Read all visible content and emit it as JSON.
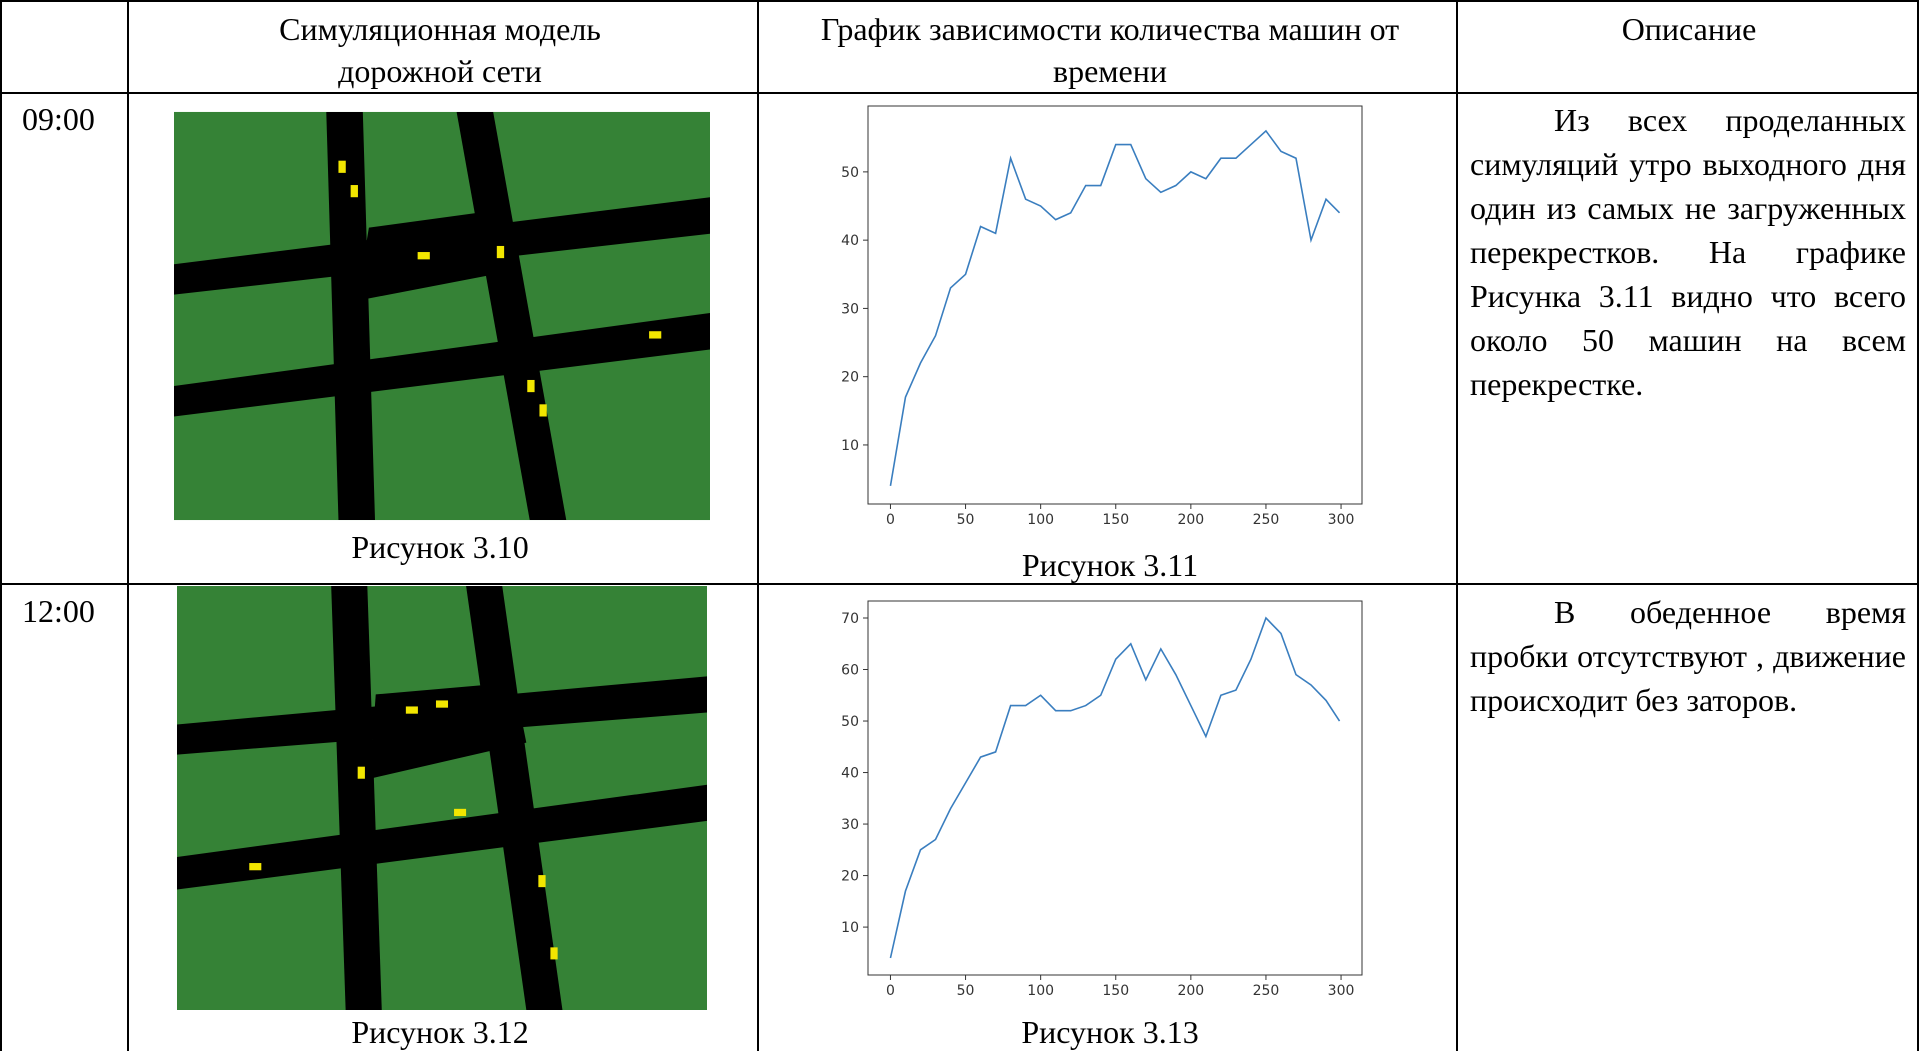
{
  "table": {
    "header": [
      "Симуляционная модель дорожной сети",
      "График зависимости количества машин от времени",
      "Описание"
    ],
    "rows": [
      {
        "time": "09:00",
        "sim_caption": "Рисунок 3.10",
        "chart_caption": "Рисунок 3.11",
        "description": "Из всех проделанных симуляций утро выходного дня один из самых не загруженных перекрестков. На графике Рисунка 3.11 видно что всего около 50 машин на всем перекрестке.",
        "chart": {
          "type": "line",
          "color": "#3a7ebf",
          "x": [
            0,
            10,
            20,
            30,
            40,
            50,
            60,
            70,
            80,
            90,
            100,
            110,
            120,
            130,
            140,
            150,
            160,
            170,
            180,
            190,
            200,
            210,
            220,
            230,
            240,
            250,
            260,
            270,
            280,
            290,
            299
          ],
          "values": [
            4,
            17,
            22,
            26,
            33,
            35,
            42,
            41,
            52,
            46,
            45,
            43,
            44,
            48,
            48,
            54,
            54,
            49,
            47,
            48,
            50,
            49,
            52,
            52,
            54,
            56,
            53,
            52,
            40,
            46,
            44
          ],
          "xlim": [
            -14.95,
            313.95
          ],
          "ylim": [
            1.35,
            59.65
          ],
          "xticks": [
            0,
            50,
            100,
            150,
            200,
            250,
            300
          ],
          "yticks": [
            10,
            20,
            30,
            40,
            50
          ]
        }
      },
      {
        "time": "12:00",
        "sim_caption": "Рисунок 3.12",
        "chart_caption": "Рисунок 3.13",
        "description": "В обеденное время пробки отсутствуют , движение происходит без заторов.",
        "chart": {
          "type": "line",
          "color": "#3a7ebf",
          "x": [
            0,
            10,
            20,
            30,
            40,
            50,
            60,
            70,
            80,
            90,
            100,
            110,
            120,
            130,
            140,
            150,
            160,
            170,
            180,
            190,
            200,
            210,
            220,
            230,
            240,
            250,
            260,
            270,
            280,
            290,
            299
          ],
          "values": [
            4,
            17,
            25,
            27,
            33,
            38,
            43,
            44,
            53,
            53,
            55,
            52,
            52,
            53,
            55,
            62,
            65,
            58,
            64,
            59,
            53,
            47,
            55,
            56,
            62,
            70,
            67,
            59,
            57,
            54,
            50
          ],
          "xlim": [
            -14.95,
            313.95
          ],
          "ylim": [
            0.7,
            73.3
          ],
          "xticks": [
            0,
            50,
            100,
            150,
            200,
            250,
            300
          ],
          "yticks": [
            10,
            20,
            30,
            40,
            50,
            60,
            70
          ]
        }
      }
    ]
  }
}
